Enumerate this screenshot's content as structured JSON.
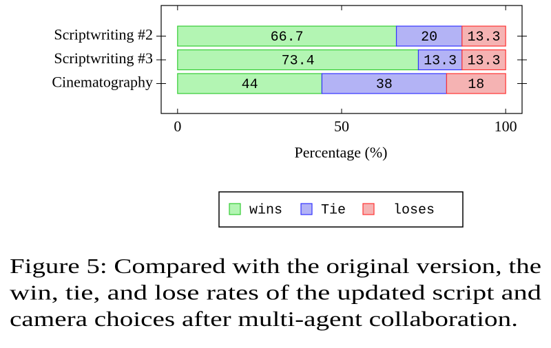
{
  "chart_data": {
    "type": "stacked-barh",
    "categories": [
      "Scriptwriting #2",
      "Scriptwriting #3",
      "Cinematography"
    ],
    "series": [
      {
        "name": "wins",
        "color": "#b3f5b3",
        "stroke": "#33cc33",
        "values": [
          66.7,
          73.4,
          44
        ]
      },
      {
        "name": "Tie",
        "color": "#b3b3f5",
        "stroke": "#3333ff",
        "values": [
          20,
          13.3,
          38
        ]
      },
      {
        "name": "loses",
        "color": "#f5b3b3",
        "stroke": "#ff3333",
        "values": [
          13.3,
          13.3,
          18
        ]
      }
    ],
    "xlabel": "Percentage (%)",
    "xlim": [
      -5,
      105
    ],
    "xticks": [
      0,
      50,
      100
    ],
    "legend": "bottom",
    "caption": [
      "Figure 5: Compared with the original version, the",
      "win, tie, and lose rates of the updated script and",
      "camera choices after multi-agent collaboration."
    ]
  }
}
